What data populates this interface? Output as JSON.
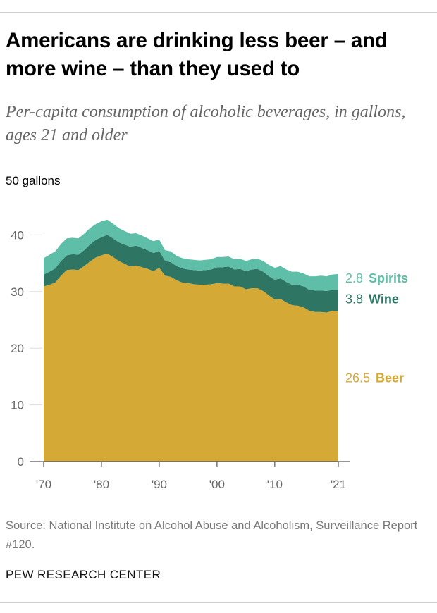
{
  "title": "Americans are drinking less beer – and more wine – than they used to",
  "subtitle": "Per-capita consumption of alcoholic beverages, in gallons, ages 21 and older",
  "source": "Source: National Institute on Alcohol Abuse and Alcoholism, Surveillance Report #120.",
  "footer": "PEW RESEARCH CENTER",
  "colors": {
    "beer": "#D4A935",
    "wine": "#2E7564",
    "spirits": "#5FBEA7",
    "axis": "#555555",
    "tick_text": "#666666",
    "grid": "#dddddd"
  },
  "chart_data": {
    "type": "area",
    "stacked": true,
    "y_unit_label": "50 gallons",
    "ylim": [
      0,
      50
    ],
    "y_ticks": [
      0,
      10,
      20,
      30,
      40
    ],
    "xlim": [
      1970,
      2021
    ],
    "x_ticks": [
      1970,
      1980,
      1990,
      2000,
      2010,
      2021
    ],
    "x_tick_labels": [
      "'70",
      "'80",
      "'90",
      "'00",
      "'10",
      "'21"
    ],
    "x": [
      1970,
      1971,
      1972,
      1973,
      1974,
      1975,
      1976,
      1977,
      1978,
      1979,
      1980,
      1981,
      1982,
      1983,
      1984,
      1985,
      1986,
      1987,
      1988,
      1989,
      1990,
      1991,
      1992,
      1993,
      1994,
      1995,
      1996,
      1997,
      1998,
      1999,
      2000,
      2001,
      2002,
      2003,
      2004,
      2005,
      2006,
      2007,
      2008,
      2009,
      2010,
      2011,
      2012,
      2013,
      2014,
      2015,
      2016,
      2017,
      2018,
      2019,
      2020,
      2021
    ],
    "series": [
      {
        "name": "Beer",
        "end_value": 26.5,
        "label": "Beer",
        "values": [
          30.9,
          31.2,
          31.6,
          32.8,
          33.8,
          33.9,
          33.8,
          34.5,
          35.3,
          36.0,
          36.4,
          36.7,
          36.1,
          35.4,
          34.9,
          34.4,
          34.6,
          34.3,
          34.0,
          33.6,
          34.2,
          32.8,
          32.6,
          32.0,
          31.6,
          31.5,
          31.3,
          31.2,
          31.2,
          31.3,
          31.5,
          31.4,
          31.4,
          30.9,
          30.9,
          30.4,
          30.6,
          30.6,
          30.1,
          29.3,
          28.6,
          28.7,
          28.1,
          27.6,
          27.5,
          27.2,
          26.6,
          26.4,
          26.4,
          26.3,
          26.6,
          26.5
        ]
      },
      {
        "name": "Wine",
        "end_value": 3.8,
        "label": "Wine",
        "values": [
          2.1,
          2.3,
          2.5,
          2.6,
          2.6,
          2.7,
          2.7,
          2.8,
          3.0,
          3.1,
          3.2,
          3.3,
          3.3,
          3.3,
          3.4,
          3.5,
          3.5,
          3.4,
          3.3,
          3.2,
          3.0,
          2.6,
          2.6,
          2.5,
          2.5,
          2.4,
          2.5,
          2.5,
          2.6,
          2.6,
          2.8,
          2.9,
          3.0,
          3.0,
          3.1,
          3.2,
          3.3,
          3.4,
          3.4,
          3.4,
          3.5,
          3.6,
          3.6,
          3.6,
          3.7,
          3.7,
          3.7,
          3.8,
          3.8,
          3.8,
          3.7,
          3.8
        ]
      },
      {
        "name": "Spirits",
        "end_value": 2.8,
        "label": "Spirits",
        "values": [
          2.9,
          3.0,
          3.0,
          3.0,
          3.0,
          2.9,
          2.9,
          2.9,
          2.9,
          2.8,
          2.8,
          2.7,
          2.6,
          2.5,
          2.4,
          2.3,
          2.2,
          2.2,
          2.1,
          2.1,
          2.0,
          1.9,
          1.9,
          1.8,
          1.8,
          1.8,
          1.8,
          1.8,
          1.8,
          1.8,
          1.8,
          1.8,
          1.8,
          1.8,
          1.8,
          1.8,
          1.8,
          1.8,
          1.9,
          2.0,
          2.1,
          2.2,
          2.2,
          2.3,
          2.3,
          2.3,
          2.4,
          2.5,
          2.6,
          2.6,
          2.7,
          2.8
        ]
      }
    ]
  }
}
